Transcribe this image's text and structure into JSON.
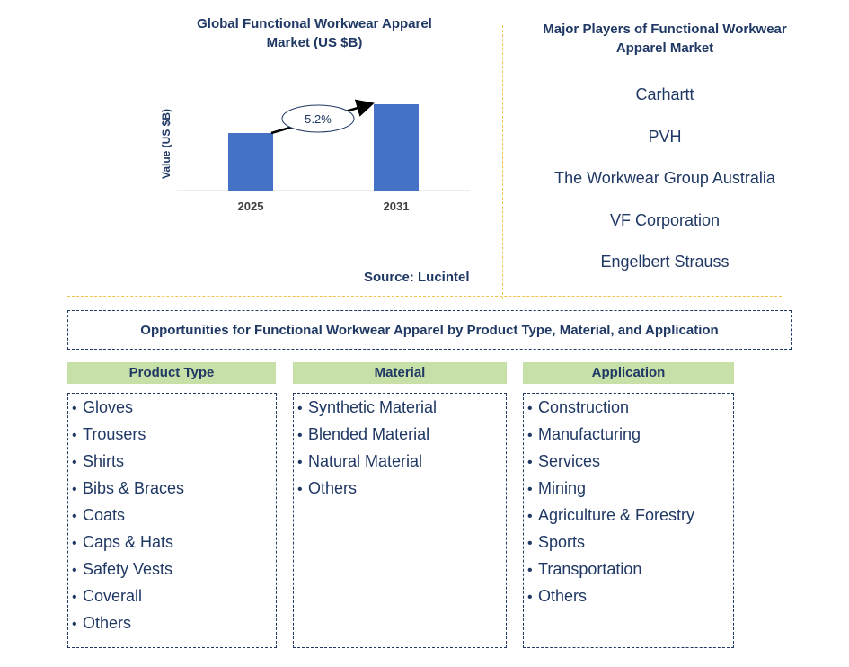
{
  "chart": {
    "title": "Global Functional Workwear Apparel Market (US $B)",
    "source": "Source: Lucintel"
  },
  "chart_data": {
    "type": "bar",
    "title": "Global Functional Workwear Apparel Market (US $B)",
    "categories": [
      "2025",
      "2031"
    ],
    "values": [
      2.0,
      3.0
    ],
    "ylabel": "Value (US $B)",
    "xlabel": "",
    "ylim": [
      0,
      3.0
    ],
    "annotation": "5.2%",
    "grid": false,
    "bar_color": "#4472c4"
  },
  "players": {
    "title": "Major Players of Functional Workwear Apparel Market",
    "items": [
      "Carhartt",
      "PVH",
      "The Workwear Group Australia",
      "VF Corporation",
      "Engelbert Strauss"
    ]
  },
  "opportunities": {
    "title": "Opportunities for Functional Workwear Apparel by Product Type, Material, and Application",
    "bullet": "•",
    "columns": [
      {
        "header": "Product Type",
        "items": [
          "Gloves",
          "Trousers",
          "Shirts",
          "Bibs & Braces",
          "Coats",
          "Caps & Hats",
          "Safety Vests",
          "Coverall",
          "Others"
        ]
      },
      {
        "header": "Material",
        "items": [
          "Synthetic Material",
          "Blended Material",
          "Natural Material",
          "Others"
        ]
      },
      {
        "header": "Application",
        "items": [
          "Construction",
          "Manufacturing",
          "Services",
          "Mining",
          "Agriculture & Forestry",
          "Sports",
          "Transportation",
          "Others"
        ]
      }
    ]
  },
  "colors": {
    "text": "#1f3864",
    "bar": "#4472c4",
    "header_fill": "#c6e0a8",
    "divider": "#f2c14e"
  }
}
